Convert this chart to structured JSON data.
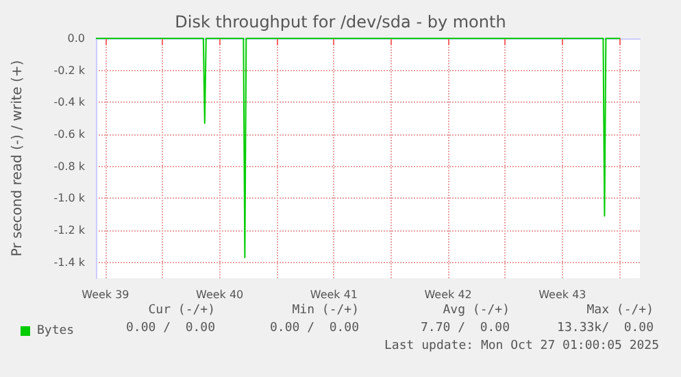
{
  "chart_data": {
    "type": "line",
    "title": "Disk throughput for /dev/sda - by month",
    "ylabel": "Pr second read (-) / write (+)",
    "x": [
      "2025-09-24T22:00",
      "2025-10-01T12:00",
      "2025-10-01T14:00",
      "2025-10-01T16:00",
      "2025-10-03T23:00",
      "2025-10-04T01:00",
      "2025-10-04T03:00",
      "2025-10-26T00:00",
      "2025-10-26T02:00",
      "2025-10-26T04:00",
      "2025-10-27T01:00"
    ],
    "series": [
      {
        "name": "Bytes",
        "color": "#00cc00",
        "values": [
          0,
          0,
          -530,
          0,
          0,
          -1370,
          0,
          0,
          -1110,
          0,
          0
        ]
      }
    ],
    "xlim": [
      "2025-09-24T22:00",
      "2025-10-28T06:00"
    ],
    "xticks": [
      {
        "value": "2025-09-25T12:00",
        "label": "Week 39"
      },
      {
        "value": "2025-09-29",
        "label": null
      },
      {
        "value": "2025-10-02T12:00",
        "label": "Week 40"
      },
      {
        "value": "2025-10-06",
        "label": null
      },
      {
        "value": "2025-10-09T12:00",
        "label": "Week 41"
      },
      {
        "value": "2025-10-13",
        "label": null
      },
      {
        "value": "2025-10-16T12:00",
        "label": "Week 42"
      },
      {
        "value": "2025-10-20",
        "label": null
      },
      {
        "value": "2025-10-23T12:00",
        "label": "Week 43"
      },
      {
        "value": "2025-10-27",
        "label": null
      }
    ],
    "ylim": [
      -1500,
      0
    ],
    "yticks": [
      {
        "value": 0,
        "label": "0.0"
      },
      {
        "value": -200,
        "label": "-0.2 k"
      },
      {
        "value": -400,
        "label": "-0.4 k"
      },
      {
        "value": -600,
        "label": "-0.6 k"
      },
      {
        "value": -800,
        "label": "-0.8 k"
      },
      {
        "value": -1000,
        "label": "-1.0 k"
      },
      {
        "value": -1200,
        "label": "-1.2 k"
      },
      {
        "value": -1400,
        "label": "-1.4 k"
      }
    ],
    "grid": true,
    "legend": "bottom",
    "marker": "none",
    "line_style": "solid",
    "annotations": [
      "Cur (-/+)",
      "Min (-/+)",
      "Avg (-/+)",
      "Max (-/+)",
      "0.00 /  0.00",
      "0.00 /  0.00",
      "7.70 /  0.00",
      "13.33k/  0.00",
      "Last update: Mon Oct 27 01:00:05 2025"
    ]
  }
}
